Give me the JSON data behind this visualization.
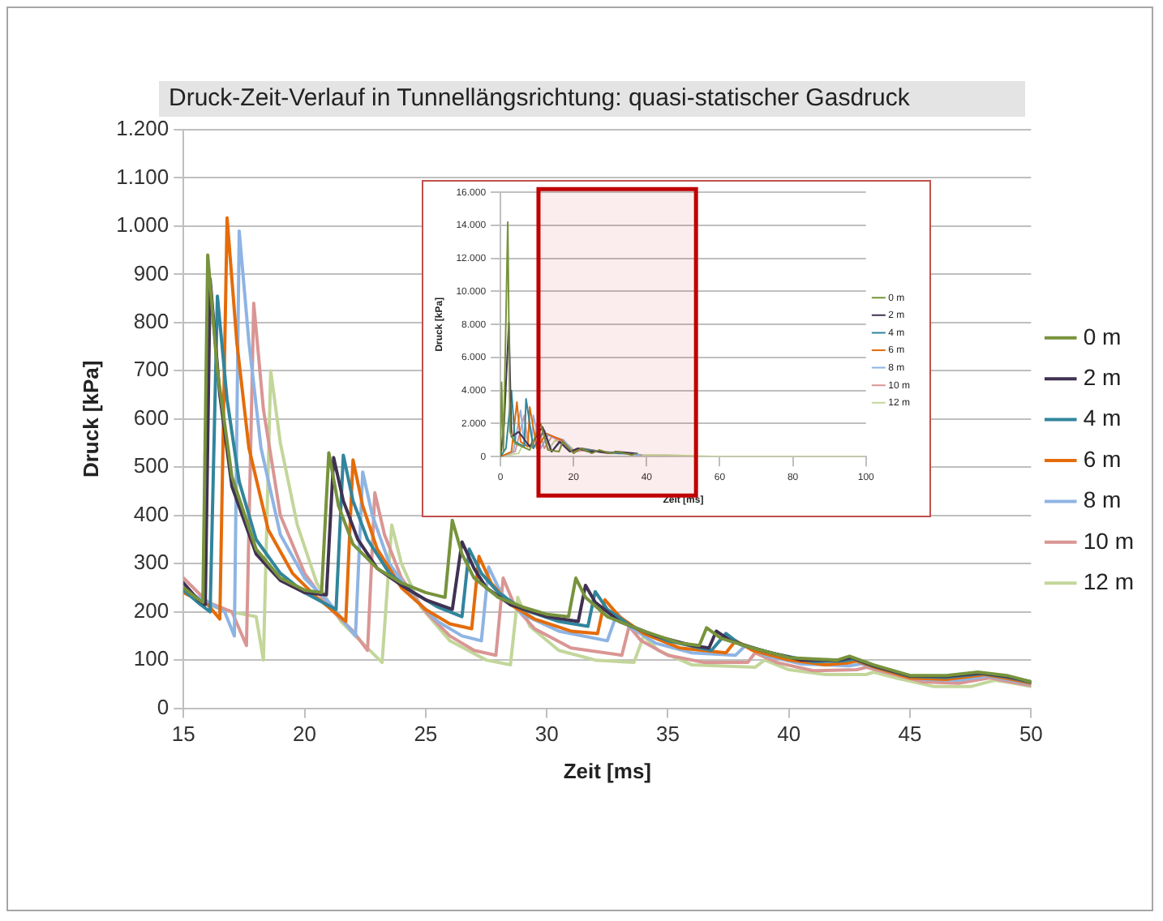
{
  "chart_data": [
    {
      "type": "line",
      "title": "Druck-Zeit-Verlauf in Tunnellängsrichtung: quasi-statischer Gasdruck",
      "xlabel": "Zeit [ms]",
      "ylabel": "Druck [kPa]",
      "xlim": [
        15,
        50
      ],
      "xticks": [
        15,
        20,
        25,
        30,
        35,
        40,
        45,
        50
      ],
      "ylim": [
        0,
        1200
      ],
      "yticks": [
        0,
        100,
        200,
        300,
        400,
        500,
        600,
        700,
        800,
        900,
        {
          "value": 1000,
          "label": "1.000"
        },
        {
          "value": 1100,
          "label": "1.100"
        },
        {
          "value": 1200,
          "label": "1.200"
        }
      ],
      "grid": "y",
      "legend": "right",
      "series": [
        {
          "name": "0 m",
          "color": "#77933c",
          "x": [
            15,
            15.5,
            15.8,
            16.0,
            16.4,
            17,
            18,
            19,
            20,
            20.7,
            21.0,
            21.4,
            22,
            23,
            24,
            25,
            25.8,
            26.1,
            26.5,
            27,
            28,
            29,
            30,
            30.9,
            31.2,
            31.6,
            32.5,
            34,
            35.5,
            36.3,
            36.6,
            37.2,
            38.5,
            40,
            42,
            42.5,
            43.5,
            45,
            46.5,
            47.8,
            49,
            50
          ],
          "values": [
            250,
            230,
            220,
            940,
            700,
            480,
            330,
            270,
            245,
            240,
            530,
            420,
            340,
            290,
            260,
            240,
            230,
            390,
            320,
            270,
            230,
            210,
            195,
            190,
            270,
            230,
            190,
            160,
            135,
            130,
            167,
            145,
            125,
            105,
            100,
            108,
            90,
            68,
            68,
            75,
            68,
            55
          ]
        },
        {
          "name": "2 m",
          "color": "#403152",
          "x": [
            15,
            15.6,
            15.9,
            16.1,
            16.5,
            17,
            18,
            19,
            20,
            20.9,
            21.2,
            21.6,
            22.2,
            23,
            24,
            25,
            26.1,
            26.5,
            27,
            27.5,
            28.5,
            30,
            31.3,
            31.6,
            32,
            33,
            34.5,
            36,
            36.7,
            37.0,
            37.6,
            39,
            40.5,
            42.1,
            42.6,
            43.5,
            45,
            46.5,
            47.9,
            49,
            50
          ],
          "values": [
            260,
            225,
            215,
            890,
            650,
            460,
            320,
            265,
            240,
            235,
            520,
            430,
            350,
            290,
            255,
            225,
            205,
            345,
            290,
            250,
            215,
            190,
            180,
            255,
            220,
            180,
            150,
            130,
            125,
            160,
            140,
            118,
            100,
            100,
            105,
            88,
            67,
            66,
            73,
            66,
            55
          ]
        },
        {
          "name": "4 m",
          "color": "#31859c",
          "x": [
            15,
            15.7,
            16.1,
            16.4,
            16.8,
            17.3,
            18,
            19,
            20,
            21.3,
            21.6,
            22,
            22.6,
            23.5,
            24.5,
            25.5,
            26.5,
            26.8,
            27.3,
            28,
            29,
            30.5,
            31.7,
            32.0,
            32.5,
            33.5,
            35,
            36.8,
            37.4,
            38,
            39.5,
            41,
            42.2,
            42.7,
            43.5,
            45,
            46.5,
            48,
            49,
            50
          ],
          "values": [
            245,
            215,
            200,
            855,
            640,
            470,
            350,
            280,
            240,
            205,
            525,
            430,
            350,
            280,
            240,
            210,
            190,
            330,
            280,
            240,
            205,
            180,
            170,
            242,
            205,
            170,
            140,
            120,
            155,
            132,
            112,
            97,
            98,
            102,
            88,
            66,
            64,
            72,
            65,
            54
          ]
        },
        {
          "name": "6 m",
          "color": "#e46c0a",
          "x": [
            15,
            16,
            16.5,
            16.8,
            17.2,
            17.7,
            18.5,
            19.5,
            20.5,
            21.7,
            22.0,
            22.4,
            23,
            24,
            25,
            26,
            26.9,
            27.2,
            27.7,
            28.5,
            29.5,
            31,
            32.1,
            32.4,
            33,
            34,
            35.5,
            37.4,
            37.8,
            38.5,
            40,
            41.5,
            42.4,
            42.8,
            43.6,
            45,
            46.5,
            48.1,
            49,
            50
          ],
          "values": [
            240,
            215,
            185,
            1017,
            760,
            540,
            370,
            280,
            230,
            180,
            515,
            420,
            330,
            250,
            205,
            175,
            165,
            315,
            260,
            215,
            185,
            160,
            155,
            225,
            190,
            155,
            125,
            115,
            140,
            120,
            100,
            90,
            94,
            98,
            84,
            63,
            60,
            70,
            62,
            52
          ]
        },
        {
          "name": "8 m",
          "color": "#8eb4e3",
          "x": [
            15,
            16,
            16.7,
            17.1,
            17.3,
            17.7,
            18.2,
            19,
            20,
            21,
            22.1,
            22.4,
            22.8,
            23.5,
            24.5,
            25.5,
            26.5,
            27.3,
            27.6,
            28.1,
            29,
            30.5,
            32.5,
            32.9,
            33.4,
            34.5,
            36,
            37.8,
            38.2,
            39,
            40.5,
            42.5,
            43,
            44,
            45.5,
            47,
            48.2,
            49,
            50
          ],
          "values": [
            245,
            220,
            200,
            150,
            990,
            760,
            540,
            360,
            270,
            220,
            150,
            490,
            400,
            300,
            230,
            180,
            150,
            140,
            293,
            240,
            195,
            160,
            140,
            197,
            170,
            135,
            115,
            110,
            130,
            110,
            92,
            88,
            92,
            78,
            60,
            58,
            67,
            60,
            50
          ]
        },
        {
          "name": "10 m",
          "color": "#d99694",
          "x": [
            15,
            16,
            17,
            17.6,
            17.9,
            18.3,
            19,
            20,
            21,
            22,
            22.6,
            22.9,
            23.3,
            24,
            25,
            26,
            27,
            27.9,
            28.2,
            28.7,
            29.5,
            31,
            33.1,
            33.4,
            33.9,
            35,
            36.5,
            38.3,
            38.6,
            39.5,
            41,
            42.8,
            43.2,
            44.2,
            45.5,
            47,
            48.3,
            49,
            50
          ],
          "values": [
            270,
            220,
            200,
            130,
            840,
            620,
            400,
            280,
            210,
            160,
            120,
            447,
            360,
            270,
            200,
            150,
            120,
            110,
            270,
            210,
            165,
            125,
            110,
            170,
            140,
            110,
            95,
            95,
            115,
            95,
            78,
            80,
            85,
            72,
            55,
            52,
            63,
            56,
            47
          ]
        },
        {
          "name": "12 m",
          "color": "#c3d69b",
          "x": [
            15,
            16,
            17,
            18,
            18.3,
            18.6,
            19,
            19.7,
            20.5,
            21.5,
            22.5,
            23.2,
            23.6,
            24,
            24.8,
            26,
            27.5,
            28.5,
            28.8,
            29.3,
            30.5,
            32,
            33.6,
            34,
            34.6,
            36,
            38.6,
            39,
            40,
            41.5,
            43.2,
            43.5,
            44.5,
            46,
            47.5,
            48.5,
            49.3,
            50
          ],
          "values": [
            240,
            215,
            200,
            190,
            100,
            700,
            550,
            380,
            260,
            180,
            130,
            95,
            380,
            300,
            210,
            140,
            100,
            90,
            230,
            170,
            120,
            100,
            95,
            150,
            120,
            90,
            85,
            100,
            80,
            70,
            70,
            75,
            62,
            45,
            45,
            58,
            52,
            45
          ]
        }
      ]
    },
    {
      "type": "line",
      "xlabel": "Zeit [ms]",
      "ylabel": "Druck [kPa]",
      "xlim": [
        0,
        100
      ],
      "xticks": [
        0,
        20,
        40,
        60,
        80,
        100
      ],
      "ylim": [
        0,
        16000
      ],
      "yticks": [
        0,
        {
          "value": 2000,
          "label": "2.000"
        },
        {
          "value": 4000,
          "label": "4.000"
        },
        {
          "value": 6000,
          "label": "6.000"
        },
        {
          "value": 8000,
          "label": "8.000"
        },
        {
          "value": 10000,
          "label": "10.000"
        },
        {
          "value": 12000,
          "label": "12.000"
        },
        {
          "value": 14000,
          "label": "14.000"
        },
        {
          "value": 16000,
          "label": "16.000"
        }
      ],
      "grid": "y",
      "legend": "right",
      "bands": [
        {
          "axis": "x",
          "from": 10.4,
          "to": 53.5,
          "color": "#c00000"
        }
      ],
      "series": [
        {
          "name": "0 m",
          "color": "#77933c",
          "x": [
            0,
            0.3,
            0.8,
            2,
            2.6,
            4,
            6,
            8,
            11,
            13,
            16,
            17,
            20,
            22,
            25,
            27,
            30,
            32,
            36,
            37
          ],
          "values": [
            0,
            4500,
            300,
            14200,
            1500,
            800,
            600,
            400,
            2000,
            400,
            300,
            900,
            200,
            500,
            200,
            400,
            200,
            300,
            100,
            200
          ]
        },
        {
          "name": "2 m",
          "color": "#403152",
          "x": [
            0,
            1,
            2.3,
            3,
            5,
            8,
            11.5,
            14,
            16.1,
            19,
            21.2,
            24,
            26.5,
            30,
            31.6,
            37
          ],
          "values": [
            0,
            2000,
            8100,
            1200,
            1500,
            600,
            1800,
            300,
            900,
            300,
            500,
            300,
            300,
            200,
            300,
            200
          ]
        },
        {
          "name": "4 m",
          "color": "#31859c",
          "x": [
            0,
            1.5,
            3,
            4,
            6.5,
            7,
            9,
            12,
            14,
            16.4,
            19,
            21.6,
            26.8,
            32,
            37.4
          ],
          "values": [
            0,
            500,
            4000,
            900,
            600,
            3500,
            500,
            1600,
            300,
            900,
            300,
            500,
            300,
            200,
            200
          ]
        },
        {
          "name": "6 m",
          "color": "#e46c0a",
          "x": [
            0,
            3,
            4.5,
            5.5,
            7.5,
            8,
            10,
            12.5,
            16.8,
            19.5,
            22,
            27.2
          ],
          "values": [
            0,
            300,
            3300,
            900,
            600,
            3000,
            500,
            1400,
            1000,
            300,
            500,
            300
          ]
        },
        {
          "name": "8 m",
          "color": "#8eb4e3",
          "x": [
            0,
            3.5,
            5.5,
            6.5,
            8.5,
            9,
            11,
            13,
            17.3,
            20,
            22.4,
            27.6,
            32.9,
            38.2
          ],
          "values": [
            0,
            300,
            2800,
            800,
            600,
            2500,
            500,
            1300,
            1000,
            300,
            500,
            300,
            200,
            100
          ]
        },
        {
          "name": "10 m",
          "color": "#d99694",
          "x": [
            0,
            4,
            6.5,
            7.5,
            9,
            10,
            12,
            14,
            17.9,
            20,
            22.9,
            28.2,
            33.4,
            38.6
          ],
          "values": [
            0,
            300,
            2500,
            800,
            500,
            2000,
            500,
            1200,
            800,
            300,
            400,
            300,
            200,
            100
          ]
        },
        {
          "name": "12 m",
          "color": "#c3d69b",
          "x": [
            0,
            5,
            8,
            9,
            10.5,
            11.5,
            13,
            15,
            18.6,
            20.5,
            23.6,
            28.8,
            34,
            39,
            45,
            60,
            100
          ],
          "values": [
            0,
            200,
            1700,
            700,
            400,
            1600,
            400,
            1000,
            700,
            300,
            400,
            200,
            200,
            100,
            100,
            0,
            0
          ]
        }
      ]
    }
  ]
}
